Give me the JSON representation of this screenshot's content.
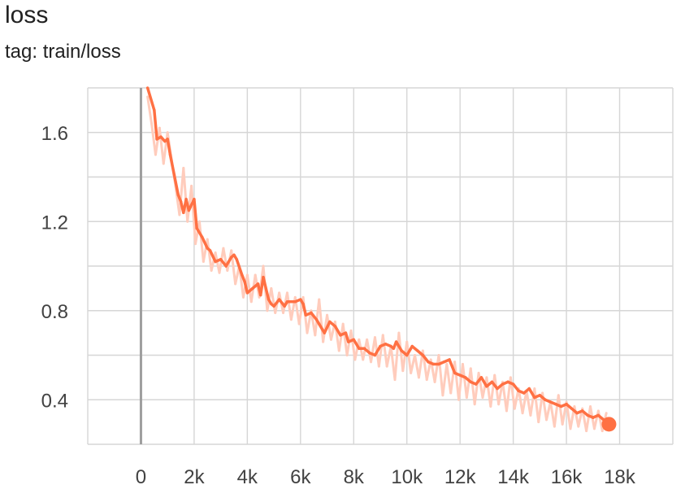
{
  "header": {
    "title": "loss",
    "subtitle": "tag: train/loss"
  },
  "chart_data": {
    "type": "line",
    "title": "loss",
    "subtitle": "tag: train/loss",
    "xlabel": "",
    "ylabel": "",
    "xlim": [
      -2000,
      20000
    ],
    "ylim": [
      0.2,
      1.8
    ],
    "x_ticks": [
      0,
      2000,
      4000,
      6000,
      8000,
      10000,
      12000,
      14000,
      16000,
      18000
    ],
    "x_tick_labels": [
      "0",
      "2k",
      "4k",
      "6k",
      "8k",
      "10k",
      "12k",
      "14k",
      "16k",
      "18k"
    ],
    "y_ticks": [
      0.4,
      0.8,
      1.2,
      1.6
    ],
    "y_tick_labels": [
      "0.4",
      "0.8",
      "1.2",
      "1.6"
    ],
    "grid": true,
    "colors": {
      "smoothed": "#ff7043",
      "raw": "#ffccbc",
      "axis": "#9e9e9e",
      "grid": "#d6d6d6"
    },
    "series": [
      {
        "role": "smoothed",
        "x": [
          250,
          500,
          600,
          750,
          900,
          1000,
          1100,
          1250,
          1400,
          1500,
          1600,
          1700,
          1800,
          2000,
          2100,
          2300,
          2500,
          2600,
          2800,
          3000,
          3200,
          3400,
          3500,
          3600,
          3800,
          3900,
          4000,
          4200,
          4400,
          4500,
          4600,
          4800,
          4900,
          5000,
          5200,
          5400,
          5500,
          5600,
          5800,
          6000,
          6100,
          6200,
          6400,
          6600,
          6700,
          6900,
          7100,
          7300,
          7500,
          7700,
          7800,
          8000,
          8200,
          8400,
          8600,
          8800,
          9000,
          9200,
          9400,
          9500,
          9600,
          9800,
          10000,
          10200,
          10400,
          10600,
          10800,
          11000,
          11200,
          11400,
          11600,
          11800,
          12000,
          12200,
          12400,
          12600,
          12800,
          13000,
          13200,
          13400,
          13600,
          13800,
          14000,
          14200,
          14400,
          14600,
          14800,
          15000,
          15200,
          15400,
          15600,
          15800,
          16000,
          16200,
          16400,
          16600,
          16800,
          17000,
          17200,
          17400,
          17600
        ],
        "y": [
          1.8,
          1.7,
          1.57,
          1.58,
          1.56,
          1.57,
          1.5,
          1.41,
          1.32,
          1.29,
          1.24,
          1.3,
          1.25,
          1.3,
          1.17,
          1.13,
          1.08,
          1.07,
          1.02,
          1.03,
          1.0,
          1.04,
          1.05,
          1.03,
          0.96,
          0.93,
          0.88,
          0.9,
          0.92,
          0.87,
          0.95,
          0.85,
          0.83,
          0.82,
          0.85,
          0.82,
          0.84,
          0.84,
          0.84,
          0.85,
          0.83,
          0.78,
          0.79,
          0.76,
          0.74,
          0.7,
          0.75,
          0.73,
          0.69,
          0.7,
          0.66,
          0.67,
          0.63,
          0.63,
          0.61,
          0.6,
          0.64,
          0.65,
          0.64,
          0.63,
          0.66,
          0.62,
          0.6,
          0.64,
          0.62,
          0.6,
          0.57,
          0.56,
          0.56,
          0.57,
          0.58,
          0.52,
          0.51,
          0.5,
          0.48,
          0.47,
          0.5,
          0.46,
          0.48,
          0.45,
          0.47,
          0.48,
          0.47,
          0.44,
          0.43,
          0.45,
          0.41,
          0.42,
          0.4,
          0.39,
          0.38,
          0.37,
          0.38,
          0.36,
          0.34,
          0.35,
          0.33,
          0.32,
          0.33,
          0.31,
          0.29
        ]
      },
      {
        "role": "raw",
        "x": [
          250,
          400,
          550,
          700,
          850,
          1000,
          1150,
          1300,
          1450,
          1600,
          1750,
          1900,
          2050,
          2200,
          2350,
          2500,
          2650,
          2800,
          2950,
          3100,
          3250,
          3400,
          3550,
          3700,
          3850,
          4000,
          4150,
          4300,
          4450,
          4600,
          4750,
          4900,
          5050,
          5200,
          5350,
          5500,
          5650,
          5800,
          5950,
          6100,
          6250,
          6400,
          6550,
          6700,
          6850,
          7000,
          7150,
          7300,
          7450,
          7600,
          7750,
          7900,
          8050,
          8200,
          8350,
          8500,
          8650,
          8800,
          8950,
          9100,
          9250,
          9400,
          9550,
          9700,
          9850,
          10000,
          10150,
          10300,
          10450,
          10600,
          10750,
          10900,
          11050,
          11200,
          11350,
          11500,
          11650,
          11800,
          11950,
          12100,
          12250,
          12400,
          12550,
          12700,
          12850,
          13000,
          13150,
          13300,
          13450,
          13600,
          13750,
          13900,
          14050,
          14200,
          14350,
          14500,
          14650,
          14800,
          14950,
          15100,
          15250,
          15400,
          15550,
          15700,
          15850,
          16000,
          16150,
          16300,
          16450,
          16600,
          16750,
          16900,
          17050,
          17200,
          17350,
          17500
        ],
        "y": [
          1.76,
          1.64,
          1.5,
          1.62,
          1.46,
          1.6,
          1.48,
          1.36,
          1.23,
          1.44,
          1.2,
          1.36,
          1.1,
          1.2,
          1.02,
          1.12,
          0.98,
          1.06,
          0.97,
          1.08,
          0.98,
          1.07,
          0.92,
          1.0,
          0.86,
          0.96,
          0.84,
          0.96,
          0.86,
          1.0,
          0.8,
          0.9,
          0.79,
          0.88,
          0.79,
          0.88,
          0.76,
          0.86,
          0.74,
          0.86,
          0.7,
          0.8,
          0.69,
          0.85,
          0.66,
          0.78,
          0.67,
          0.75,
          0.62,
          0.74,
          0.6,
          0.71,
          0.58,
          0.67,
          0.58,
          0.67,
          0.57,
          0.68,
          0.55,
          0.69,
          0.55,
          0.64,
          0.49,
          0.7,
          0.53,
          0.66,
          0.52,
          0.6,
          0.5,
          0.62,
          0.49,
          0.58,
          0.48,
          0.6,
          0.42,
          0.56,
          0.43,
          0.57,
          0.4,
          0.56,
          0.41,
          0.54,
          0.38,
          0.52,
          0.41,
          0.5,
          0.37,
          0.51,
          0.38,
          0.48,
          0.35,
          0.5,
          0.36,
          0.45,
          0.34,
          0.44,
          0.33,
          0.45,
          0.3,
          0.43,
          0.31,
          0.39,
          0.28,
          0.42,
          0.29,
          0.39,
          0.27,
          0.37,
          0.28,
          0.36,
          0.26,
          0.37,
          0.27,
          0.35,
          0.26,
          0.34
        ]
      }
    ],
    "last_point": {
      "x": 17600,
      "y": 0.29
    }
  }
}
